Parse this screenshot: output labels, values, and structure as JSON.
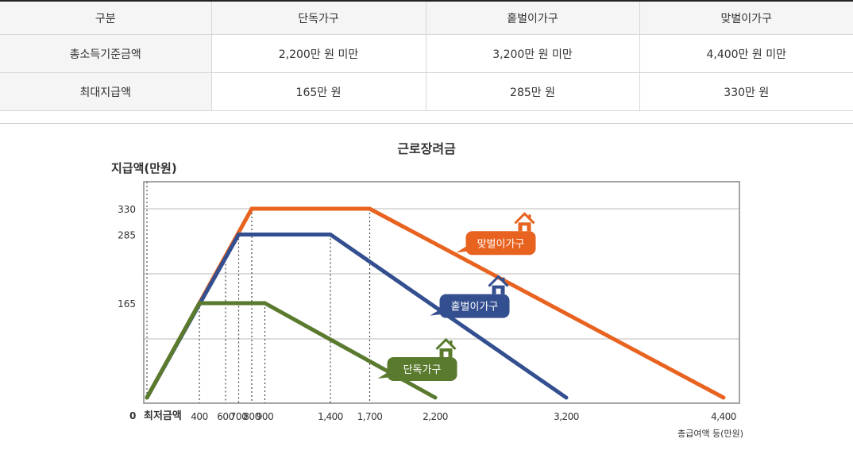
{
  "table": {
    "headers": [
      "구분",
      "단독가구",
      "홑벌이가구",
      "맞벌이가구"
    ],
    "rows": [
      [
        "총소득기준금액",
        "2,200만 원 미만",
        "3,200만 원 미만",
        "4,400만 원 미만"
      ],
      [
        "최대지급액",
        "165만 원",
        "285만 원",
        "330만 원"
      ]
    ]
  },
  "chart_data": {
    "type": "line",
    "title": "근로장려금",
    "ylabel": "지급액(만원)",
    "xlabel": "총급여액 등(만원)",
    "y_origin_label": "0",
    "x_origin_label": "최저금액",
    "xlim": [
      0,
      4450
    ],
    "ylim": [
      0,
      365
    ],
    "x_ticks": [
      400,
      600,
      700,
      800,
      900,
      1400,
      1700,
      2200,
      3200,
      4400
    ],
    "x_tick_labels": [
      "400",
      "600",
      "700",
      "800",
      "900",
      "1,400",
      "1,700",
      "2,200",
      "3,200",
      "4,400"
    ],
    "y_ticks": [
      165,
      285,
      330
    ],
    "y_tick_labels": [
      "165",
      "285",
      "330"
    ],
    "grid": true,
    "series": [
      {
        "name": "맞벌이가구",
        "color": "#e8631f",
        "x": [
          0,
          800,
          1700,
          4400
        ],
        "y": [
          0,
          330,
          330,
          0
        ],
        "label_at": [
          2700,
          270
        ]
      },
      {
        "name": "홑벌이가구",
        "color": "#334f8f",
        "x": [
          0,
          700,
          1400,
          3200
        ],
        "y": [
          0,
          285,
          285,
          0
        ],
        "label_at": [
          2500,
          160
        ]
      },
      {
        "name": "단독가구",
        "color": "#5a7a2e",
        "x": [
          0,
          400,
          900,
          2200
        ],
        "y": [
          0,
          165,
          165,
          0
        ],
        "label_at": [
          2100,
          50
        ]
      }
    ]
  }
}
